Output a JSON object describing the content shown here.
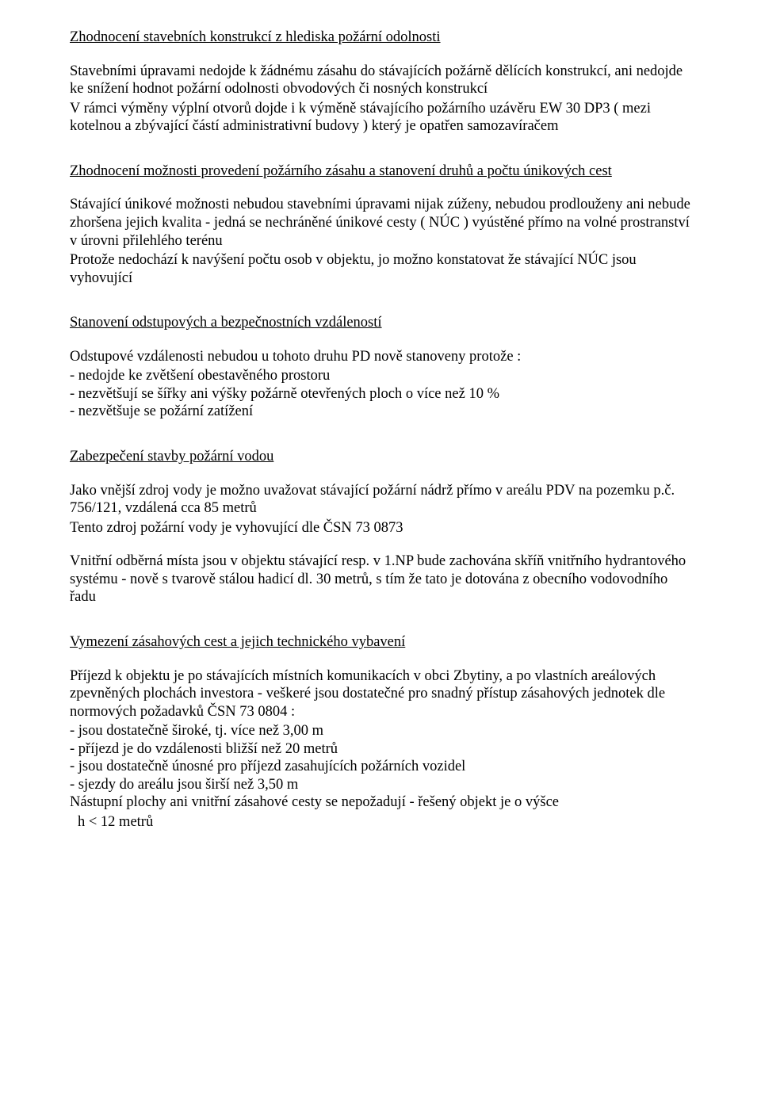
{
  "section1": {
    "heading": "Zhodnocení stavebních konstrukcí z hlediska požární odolnosti",
    "para1": "Stavebními úpravami nedojde k žádnému zásahu do stávajících požárně dělících konstrukcí, ani nedojde ke snížení hodnot požární odolnosti obvodových či nosných konstrukcí",
    "para2": "V rámci výměny výplní otvorů dojde i k výměně stávajícího požárního uzávěru EW 30 DP3 ( mezi kotelnou a zbývající částí administrativní budovy ) který je opatřen samozavíračem"
  },
  "section2": {
    "heading": "Zhodnocení možnosti provedení požárního zásahu a stanovení druhů a počtu únikových cest",
    "para1": "Stávající únikové možnosti nebudou stavebními úpravami nijak zúženy, nebudou prodlouženy ani nebude zhoršena jejich kvalita - jedná se nechráněné únikové cesty ( NÚC ) vyústěné přímo na volné prostranství v úrovni přilehlého terénu",
    "para2": "Protože nedochází k navýšení počtu osob v objektu, jo možno konstatovat že stávající NÚC jsou vyhovující"
  },
  "section3": {
    "heading": "Stanovení odstupových a bezpečnostních vzdáleností",
    "intro": "Odstupové vzdálenosti nebudou u tohoto druhu PD nově stanoveny  protože :",
    "items": [
      "- nedojde ke zvětšení obestavěného prostoru",
      "- nezvětšují se šířky ani výšky požárně otevřených ploch o více než 10 %",
      "- nezvětšuje se požární zatížení"
    ]
  },
  "section4": {
    "heading": "Zabezpečení stavby požární vodou",
    "para1": "Jako vnější zdroj vody je možno uvažovat stávající požární nádrž přímo v areálu PDV na pozemku p.č. 756/121, vzdálená cca 85 metrů",
    "para2": "Tento zdroj požární vody  je vyhovující dle ČSN 73 0873",
    "para3": "Vnitřní odběrná místa jsou v objektu stávající resp. v 1.NP bude zachována skříň vnitřního hydrantového systému - nově s tvarově stálou hadicí dl. 30 metrů, s tím že tato je dotována z obecního vodovodního řadu"
  },
  "section5": {
    "heading": "Vymezení zásahových cest  a jejich technického vybavení",
    "para1": "Příjezd k objektu je po stávajících místních komunikacích v obci Zbytiny, a po vlastních areálových zpevněných plochách investora - veškeré jsou dostatečné pro snadný přístup zásahových jednotek dle normových požadavků ČSN 73 0804 :",
    "items": [
      "- jsou dostatečně široké, tj. více než 3,00 m",
      "- příjezd je do vzdálenosti bližší než 20 metrů",
      "- jsou dostatečně únosné pro příjezd zasahujících požárních vozidel",
      "- sjezdy do areálu jsou širší než 3,50 m"
    ],
    "para2": "Nástupní plochy ani vnitřní zásahové cesty se nepožadují - řešený objekt je o výšce",
    "para3": " h < 12 metrů"
  }
}
